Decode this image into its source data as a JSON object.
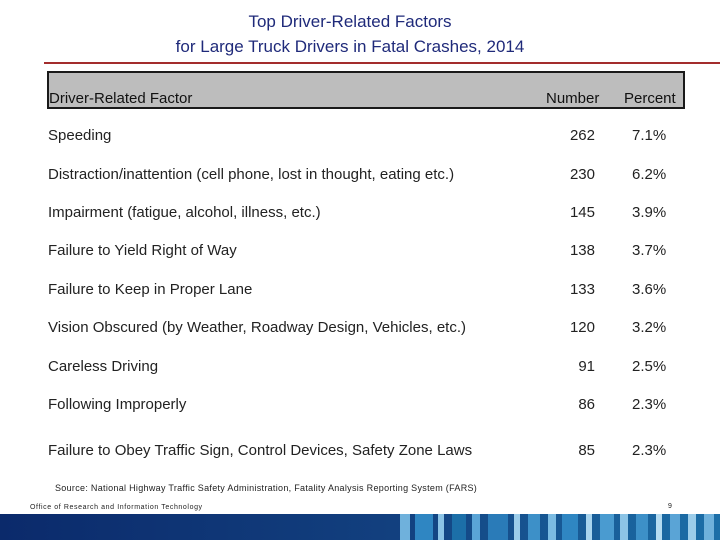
{
  "title_line1": "Top Driver-Related Factors",
  "title_line2": "for Large Truck Drivers in Fatal Crashes, 2014",
  "columns": {
    "factor": "Driver-Related Factor",
    "number": "Number",
    "percent": "Percent"
  },
  "rows": [
    {
      "factor": "Speeding",
      "number": "262",
      "percent": "7.1%"
    },
    {
      "factor": "Distraction/inattention (cell phone, lost in thought, eating  etc.)",
      "number": "230",
      "percent": "6.2%"
    },
    {
      "factor": "Impairment (fatigue, alcohol, illness, etc.)",
      "number": "145",
      "percent": "3.9%"
    },
    {
      "factor": "Failure to Yield Right of Way",
      "number": "138",
      "percent": "3.7%"
    },
    {
      "factor": "Failure to Keep in Proper Lane",
      "number": "133",
      "percent": "3.6%"
    },
    {
      "factor": "Vision Obscured (by Weather, Roadway Design, Vehicles, etc.)",
      "number": "120",
      "percent": "3.2%"
    },
    {
      "factor": "Careless Driving",
      "number": "91",
      "percent": "2.5%"
    },
    {
      "factor": "Following Improperly",
      "number": "86",
      "percent": "2.3%"
    },
    {
      "factor": "Failure to Obey Traffic Sign, Control Devices, Safety Zone Laws",
      "number": "85",
      "percent": "2.3%"
    }
  ],
  "source": "Source: National Highway Traffic Safety Administration, Fatality Analysis Reporting System (FARS)",
  "footer": {
    "office": "Office of Research and Information Technology",
    "page": "9"
  },
  "colors": {
    "title": "#1f2a7a",
    "rule": "#a32d2d",
    "header_bg": "#bdbdbd",
    "bar_dark": "#0b2a6b",
    "bar_mid": "#1c6fa8",
    "bar_light": "#6fb1dc"
  }
}
